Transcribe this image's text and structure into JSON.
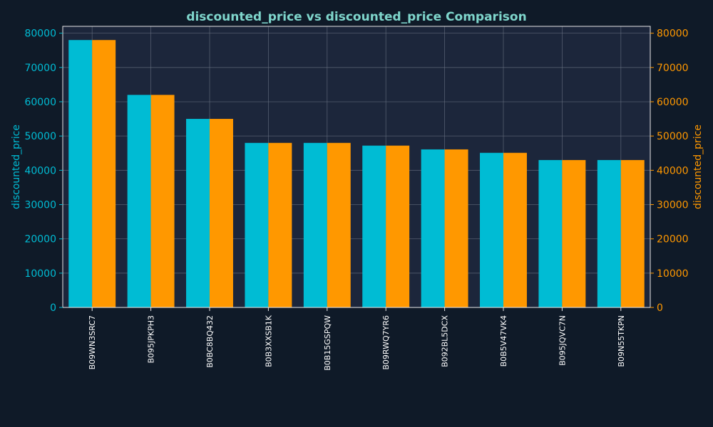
{
  "colors": {
    "background": "#0f1a28",
    "plot_background": "#1c263b",
    "left_series": "#00bcd4",
    "right_series": "#ff9800",
    "title": "#7fd6cc",
    "grid": "#6b7484",
    "spine": "#e8e8e8",
    "category_text": "#ffffff"
  },
  "chart_data": {
    "type": "bar",
    "title": "discounted_price vs discounted_price Comparison",
    "categories": [
      "B09WN3SRC7",
      "B095JPKPH3",
      "B0BC8BQ432",
      "B0B3XXSB1K",
      "B0B15GSPQW",
      "B09RWQ7YR6",
      "B092BL5DCX",
      "B0B5V47VK4",
      "B095JQVC7N",
      "B09N55TKPN"
    ],
    "series": [
      {
        "values": [
          78000,
          62000,
          55000,
          48000,
          48000,
          47200,
          46100,
          45100,
          43000,
          43000
        ],
        "axis": "left"
      },
      {
        "values": [
          78000,
          62000,
          55000,
          48000,
          48000,
          47200,
          46100,
          45100,
          43000,
          43000
        ],
        "axis": "right"
      }
    ],
    "ylabel_left": "discounted_price",
    "ylabel_right": "discounted_price",
    "ylim": [
      0,
      82000
    ],
    "yticks": [
      0,
      10000,
      20000,
      30000,
      40000,
      50000,
      60000,
      70000,
      80000
    ],
    "grid": true
  }
}
